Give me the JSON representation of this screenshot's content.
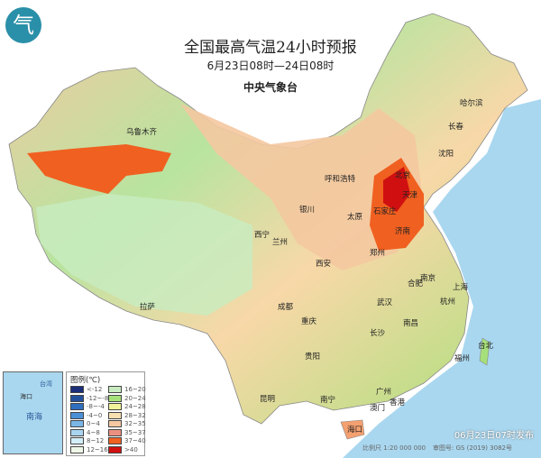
{
  "header": {
    "title": "全国最高气温24小时预报",
    "period": "6月23日08时—24日08时",
    "agency": "中央气象台"
  },
  "logo": {
    "glyph": "气",
    "color": "#2a8fa8"
  },
  "cities": [
    "乌鲁木齐",
    "哈尔滨",
    "长春",
    "沈阳",
    "呼和浩特",
    "北京",
    "天津",
    "石家庄",
    "太原",
    "银川",
    "济南",
    "西宁",
    "兰州",
    "郑州",
    "西安",
    "南京",
    "合肥",
    "上海",
    "杭州",
    "成都",
    "武汉",
    "重庆",
    "拉萨",
    "长沙",
    "南昌",
    "福州",
    "台北",
    "贵阳",
    "昆明",
    "南宁",
    "广州",
    "香港",
    "澳门",
    "海口"
  ],
  "inset": {
    "labels": [
      "台湾",
      "南海",
      "海口"
    ]
  },
  "legend": {
    "title": "图例(℃)",
    "items": [
      {
        "label": "<-12",
        "color": "#1b2e7a"
      },
      {
        "label": "-12~-8",
        "color": "#24519c"
      },
      {
        "label": "-8~-4",
        "color": "#2e6fc0"
      },
      {
        "label": "-4~0",
        "color": "#4a90d6"
      },
      {
        "label": "0~4",
        "color": "#7ab6e6"
      },
      {
        "label": "4~8",
        "color": "#a9d4f0"
      },
      {
        "label": "8~12",
        "color": "#d2eef8"
      },
      {
        "label": "12~16",
        "color": "#eef8e8"
      },
      {
        "label": "16~20",
        "color": "#c8ecc0"
      },
      {
        "label": "20~24",
        "color": "#a6e07a"
      },
      {
        "label": "24~28",
        "color": "#f2f29a"
      },
      {
        "label": "28~32",
        "color": "#f8e0b0"
      },
      {
        "label": "32~35",
        "color": "#f4c8a0"
      },
      {
        "label": "35~37",
        "color": "#ec9080"
      },
      {
        "label": "37~40",
        "color": "#f06020"
      },
      {
        "label": ">40",
        "color": "#d01010"
      }
    ]
  },
  "footer": {
    "issued": "06月23日07时发布",
    "scale": "比例尺 1:20 000 000",
    "approval": "审图号: GS (2019) 3082号"
  },
  "colors": {
    "sea": "#a9d7ef",
    "hot": "#f06020",
    "extreme": "#d01010"
  }
}
